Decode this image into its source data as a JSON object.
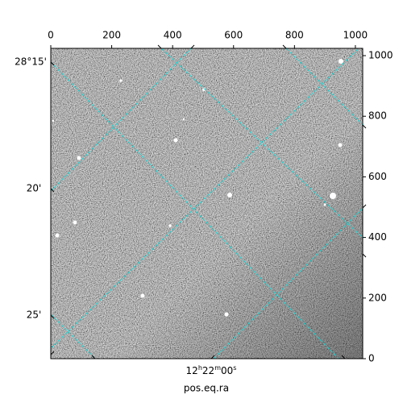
{
  "chart_data": {
    "type": "image",
    "xlabel": "pos.eq.ra",
    "xlim": [
      0,
      1024
    ],
    "xticks": [
      0,
      200,
      400,
      600,
      800,
      1000
    ],
    "ylim": [
      0,
      1024
    ],
    "yticks": [
      0,
      200,
      400,
      600,
      800,
      1000
    ],
    "world_y_ticks": [
      "28°15'",
      "20'",
      "25'"
    ],
    "world_x_ticks": [
      [
        "12",
        "h",
        "22",
        "m",
        "00",
        "s"
      ]
    ],
    "grid_color": "#1fd3d3"
  }
}
